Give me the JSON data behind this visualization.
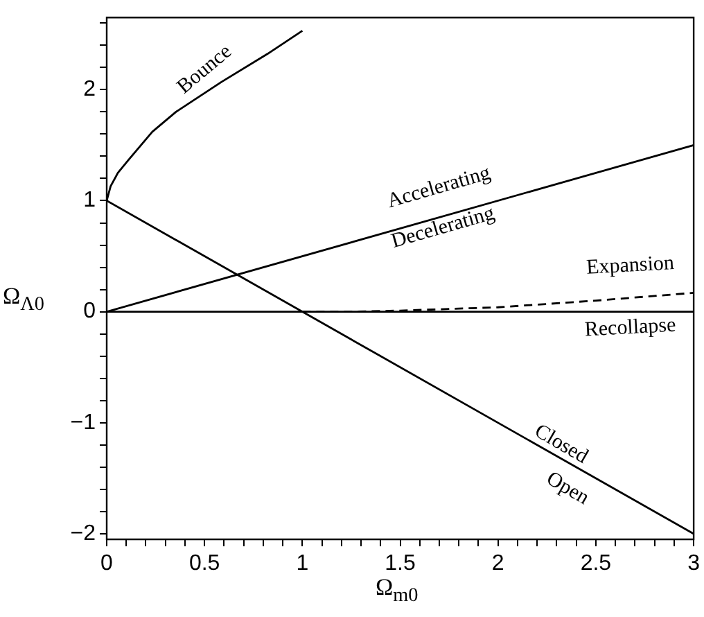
{
  "chart_data": {
    "type": "line",
    "xlabel": "Ω$_{m0}$",
    "ylabel": "Ω$_{Λ0}$",
    "xlim": [
      0,
      3
    ],
    "ylim": [
      -2.05,
      2.65
    ],
    "xticks": [
      0,
      {
        "value": 0.1,
        "label": null
      },
      {
        "value": 0.2,
        "label": null
      },
      {
        "value": 0.3,
        "label": null
      },
      {
        "value": 0.4,
        "label": null
      },
      0.5,
      {
        "value": 0.6,
        "label": null
      },
      {
        "value": 0.7,
        "label": null
      },
      {
        "value": 0.8,
        "label": null
      },
      {
        "value": 0.9,
        "label": null
      },
      1,
      {
        "value": 1.1,
        "label": null
      },
      {
        "value": 1.2,
        "label": null
      },
      {
        "value": 1.3,
        "label": null
      },
      {
        "value": 1.4,
        "label": null
      },
      1.5,
      {
        "value": 1.6,
        "label": null
      },
      {
        "value": 1.7,
        "label": null
      },
      {
        "value": 1.8,
        "label": null
      },
      {
        "value": 1.9,
        "label": null
      },
      2,
      {
        "value": 2.1,
        "label": null
      },
      {
        "value": 2.2,
        "label": null
      },
      {
        "value": 2.3,
        "label": null
      },
      {
        "value": 2.4,
        "label": null
      },
      2.5,
      {
        "value": 2.6,
        "label": null
      },
      {
        "value": 2.7,
        "label": null
      },
      {
        "value": 2.8,
        "label": null
      },
      {
        "value": 2.9,
        "label": null
      },
      3
    ],
    "yticks": [
      {
        "value": -2,
        "label": "−2"
      },
      {
        "value": -1.8,
        "label": null
      },
      {
        "value": -1.6,
        "label": null
      },
      {
        "value": -1.4,
        "label": null
      },
      {
        "value": -1.2,
        "label": null
      },
      {
        "value": -1,
        "label": "−1"
      },
      {
        "value": -0.8,
        "label": null
      },
      {
        "value": -0.6,
        "label": null
      },
      {
        "value": -0.4,
        "label": null
      },
      {
        "value": -0.2,
        "label": null
      },
      0,
      {
        "value": 0.2,
        "label": null
      },
      {
        "value": 0.4,
        "label": null
      },
      {
        "value": 0.6,
        "label": null
      },
      {
        "value": 0.8,
        "label": null
      },
      1,
      {
        "value": 1.2,
        "label": null
      },
      {
        "value": 1.4,
        "label": null
      },
      {
        "value": 1.6,
        "label": null
      },
      {
        "value": 1.8,
        "label": null
      },
      2,
      {
        "value": 2.2,
        "label": null
      },
      {
        "value": 2.4,
        "label": null
      },
      {
        "value": 2.6,
        "label": null
      }
    ],
    "grid": false,
    "legend": false,
    "marker": "none",
    "series": [
      {
        "color": "#000000",
        "x": [
          0,
          0.02,
          0.057,
          0.113,
          0.233,
          0.354,
          0.587,
          0.82,
          1.0
        ],
        "values": [
          1,
          1.13,
          1.25,
          1.37,
          1.62,
          1.8,
          2.07,
          2.32,
          2.53
        ]
      },
      {
        "color": "#000000",
        "x": [
          0,
          3
        ],
        "values": [
          0,
          1.5
        ]
      },
      {
        "color": "#000000",
        "x": [
          0,
          3
        ],
        "values": [
          1,
          -2
        ]
      },
      {
        "color": "#000000",
        "x": [
          0,
          3
        ],
        "values": [
          0,
          0
        ]
      },
      {
        "color": "#000000",
        "line_style": "dashed",
        "x": [
          1,
          1.25,
          1.5,
          2,
          2.5,
          3
        ],
        "values": [
          0,
          0,
          0.01,
          0.04,
          0.1,
          0.17
        ]
      }
    ],
    "annotations": [
      "Bounce",
      "Accelerating",
      "Decelerating",
      "Expansion",
      "Recollapse",
      "Closed",
      "Open"
    ]
  }
}
